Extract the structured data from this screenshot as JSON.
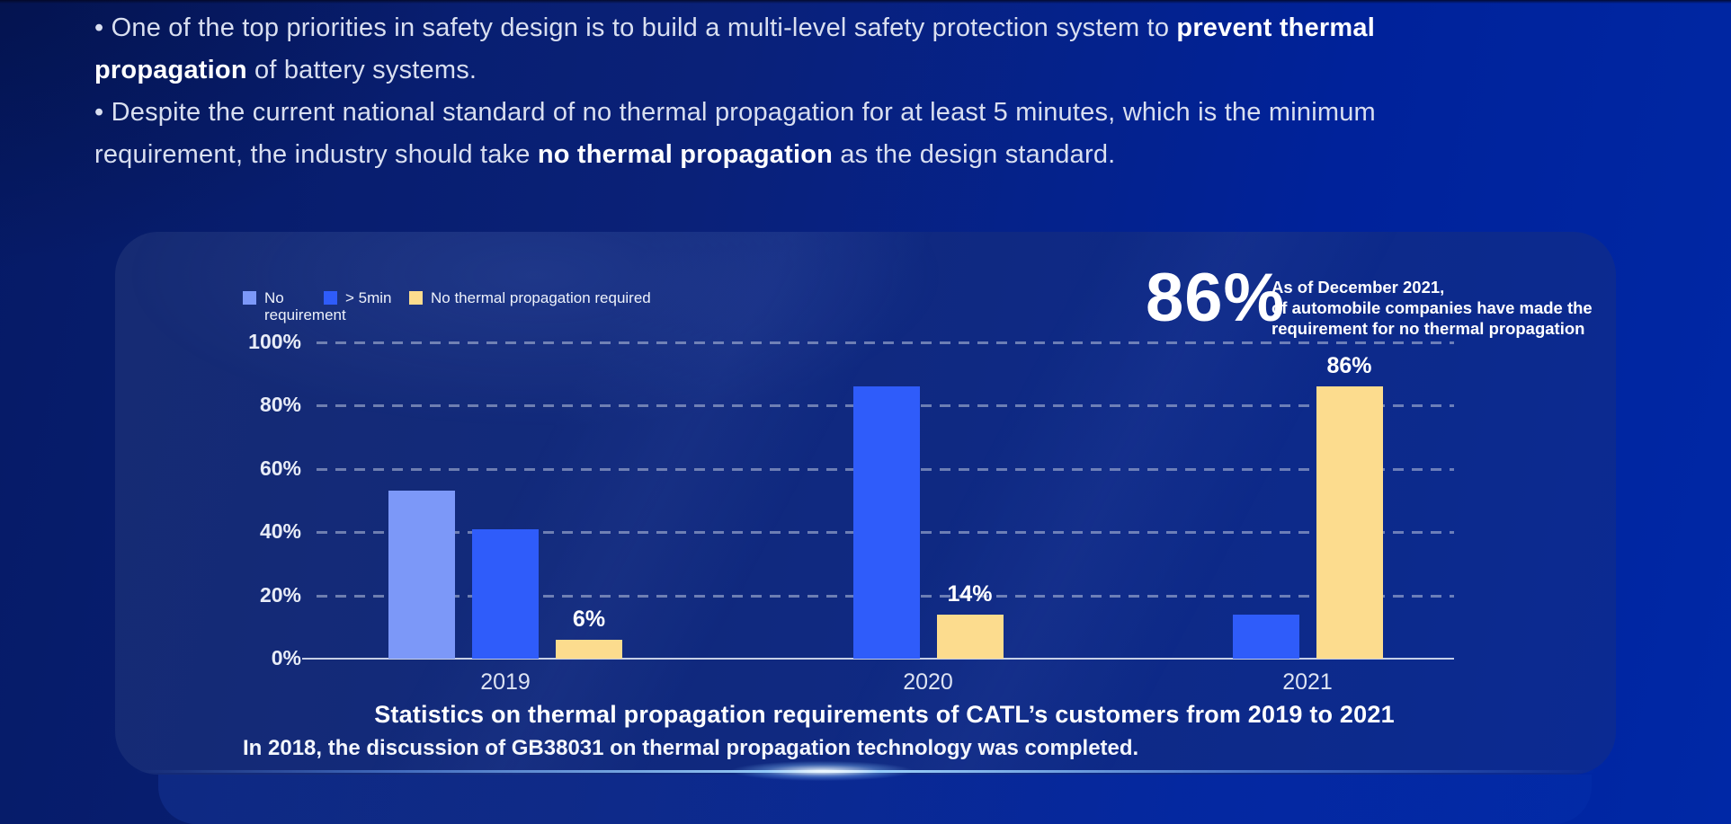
{
  "bullets": {
    "lines": [
      [
        {
          "t": "• One of the top priorities in safety design is to build a multi-level safety protection system to ",
          "b": false
        },
        {
          "t": "prevent thermal",
          "b": true
        }
      ],
      [
        {
          "t": "propagation",
          "b": true
        },
        {
          "t": " of battery systems.",
          "b": false
        }
      ],
      [
        {
          "t": "• Despite the current national standard of no thermal propagation for at least 5 minutes, which is the minimum",
          "b": false
        }
      ],
      [
        {
          "t": "requirement, the industry should take ",
          "b": false
        },
        {
          "t": "no thermal propagation",
          "b": true
        },
        {
          "t": " as the design standard.",
          "b": false
        }
      ]
    ]
  },
  "panel": {
    "callout": {
      "value": "86%",
      "lines": [
        "As of December 2021,",
        "of automobile companies have made the",
        "requirement for no thermal propagation"
      ]
    },
    "footnote": "In 2018, the discussion of GB38031 on thermal propagation technology was completed."
  },
  "chart_data": {
    "type": "bar",
    "title": "Statistics on thermal propagation requirements of CATL’s customers from 2019 to 2021",
    "categories": [
      "2019",
      "2020",
      "2021"
    ],
    "series": [
      {
        "name": "No requirement",
        "color": "#7C98F8",
        "values": [
          53,
          null,
          null
        ]
      },
      {
        "name": "> 5min",
        "color": "#2F5CFA",
        "values": [
          41,
          86,
          14
        ]
      },
      {
        "name": "No thermal propagation required",
        "color": "#FCDC8E",
        "values": [
          6,
          14,
          86
        ],
        "labels": [
          "6%",
          "14%",
          "86%"
        ]
      }
    ],
    "xlabel": "",
    "ylabel": "",
    "ylim": [
      0,
      100
    ],
    "yticks": [
      "0%",
      "20%",
      "40%",
      "60%",
      "80%",
      "100%"
    ],
    "grid": "dashed-horizontal",
    "legend_position": "top-left",
    "background_colors": {
      "page_left": "#051a66",
      "page_right": "#0028a6",
      "panel": "#10297f"
    }
  }
}
